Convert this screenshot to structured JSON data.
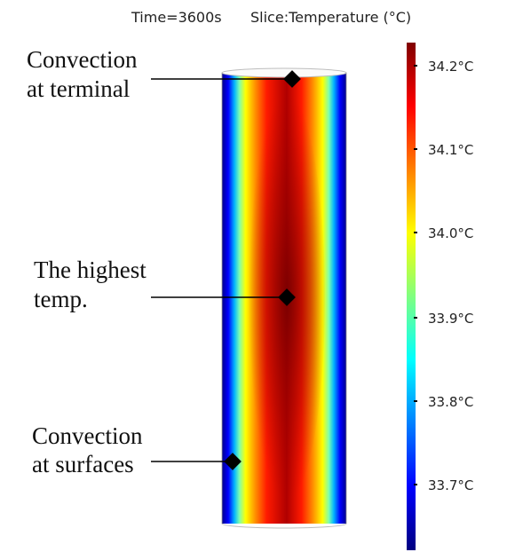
{
  "header": {
    "time": "Time=3600s",
    "slice": "Slice:Temperature (°C)"
  },
  "annotations": {
    "terminal": {
      "line1": "Convection",
      "line2": "at terminal"
    },
    "highest": {
      "line1": "The highest",
      "line2": "temp."
    },
    "surfaces": {
      "line1": "Convection",
      "line2": "at surfaces"
    }
  },
  "colorbar": {
    "ticks": [
      "34.2°C",
      "34.1°C",
      "34.0°C",
      "33.9°C",
      "33.8°C",
      "33.7°C"
    ],
    "colors": [
      "#000080",
      "#0000ff",
      "#0080ff",
      "#00ffff",
      "#80ff80",
      "#ffff00",
      "#ff8000",
      "#ff0000",
      "#800000"
    ]
  }
}
